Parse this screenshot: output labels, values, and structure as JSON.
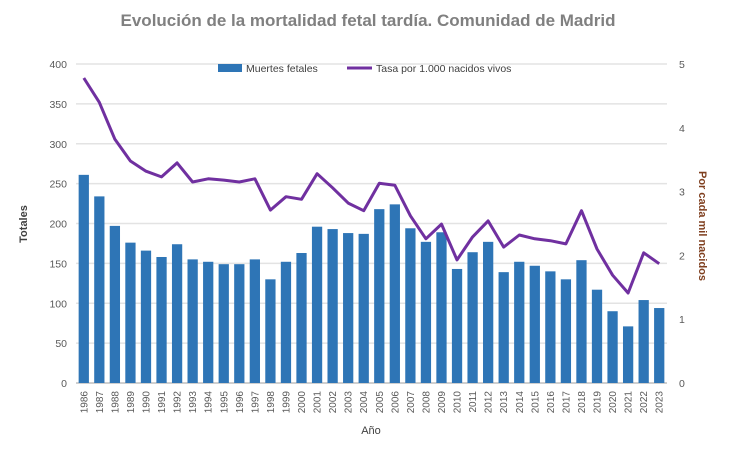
{
  "chart_data": {
    "type": "bar+line",
    "title": "Evolución de la mortalidad fetal tardía. Comunidad de Madrid",
    "xlabel": "Año",
    "ylabel": "Totales",
    "y2label": "Por cada mil nacidos",
    "ylim": [
      0,
      400
    ],
    "y2lim": [
      0,
      5
    ],
    "yticks": [
      0,
      50,
      100,
      150,
      200,
      250,
      300,
      350,
      400
    ],
    "y2ticks": [
      0,
      1,
      2,
      3,
      4,
      5
    ],
    "grid": true,
    "legend_position": "top",
    "categories": [
      "1986",
      "1987",
      "1988",
      "1989",
      "1990",
      "1991",
      "1992",
      "1993",
      "1994",
      "1995",
      "1996",
      "1997",
      "1998",
      "1999",
      "2000",
      "2001",
      "2002",
      "2003",
      "2004",
      "2005",
      "2006",
      "2007",
      "2008",
      "2009",
      "2010",
      "2011",
      "2012",
      "2013",
      "2014",
      "2015",
      "2016",
      "2017",
      "2018",
      "2019",
      "2020",
      "2021",
      "2022",
      "2023"
    ],
    "series": [
      {
        "name": "Muertes fetales",
        "type": "bar",
        "axis": "left",
        "color": "#2E75B6",
        "values": [
          261,
          234,
          197,
          176,
          166,
          158,
          174,
          155,
          152,
          149,
          149,
          155,
          130,
          152,
          163,
          196,
          193,
          188,
          187,
          218,
          224,
          194,
          177,
          189,
          143,
          164,
          177,
          139,
          152,
          147,
          140,
          130,
          154,
          117,
          90,
          71,
          104,
          94
        ]
      },
      {
        "name": "Tasa por 1.000 nacidos vivos",
        "type": "line",
        "axis": "right",
        "color": "#7030A0",
        "values": [
          4.78,
          4.4,
          3.82,
          3.48,
          3.32,
          3.23,
          3.45,
          3.15,
          3.2,
          3.18,
          3.15,
          3.2,
          2.71,
          2.92,
          2.88,
          3.28,
          3.06,
          2.82,
          2.7,
          3.13,
          3.1,
          2.62,
          2.26,
          2.49,
          1.93,
          2.29,
          2.54,
          2.13,
          2.32,
          2.26,
          2.23,
          2.18,
          2.7,
          2.1,
          1.69,
          1.41,
          2.04,
          1.87
        ]
      }
    ]
  }
}
